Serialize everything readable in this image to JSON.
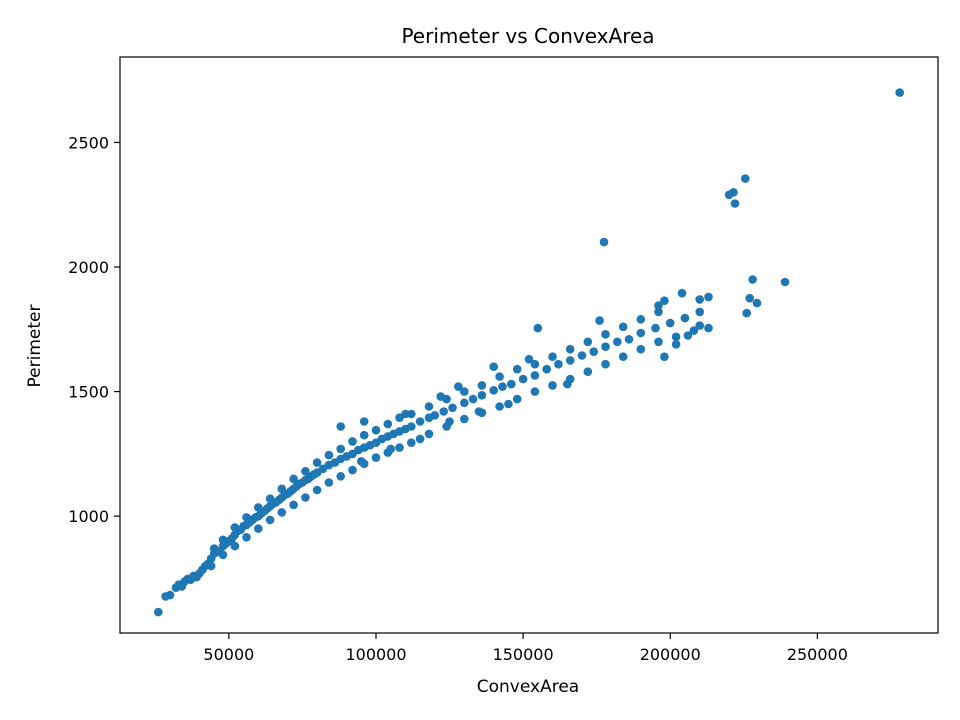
{
  "chart_data": {
    "type": "scatter",
    "title": "Perimeter vs ConvexArea",
    "xlabel": "ConvexArea",
    "ylabel": "Perimeter",
    "xlim": [
      13000,
      291000
    ],
    "ylim": [
      531,
      2843
    ],
    "xticks": [
      50000,
      100000,
      150000,
      200000,
      250000
    ],
    "yticks": [
      1000,
      1500,
      2000,
      2500
    ],
    "grid": false,
    "marker_color": "#1f77b4",
    "series": [
      {
        "points": [
          [
            26000,
            615
          ],
          [
            28500,
            678
          ],
          [
            30000,
            683
          ],
          [
            32000,
            713
          ],
          [
            33000,
            725
          ],
          [
            34000,
            718
          ],
          [
            35000,
            738
          ],
          [
            36000,
            748
          ],
          [
            37000,
            745
          ],
          [
            38000,
            760
          ],
          [
            39000,
            755
          ],
          [
            40000,
            770
          ],
          [
            41000,
            785
          ],
          [
            42000,
            800
          ],
          [
            43000,
            810
          ],
          [
            44000,
            830
          ],
          [
            45000,
            850
          ],
          [
            46000,
            860
          ],
          [
            47000,
            855
          ],
          [
            48000,
            880
          ],
          [
            49000,
            890
          ],
          [
            50000,
            900
          ],
          [
            51000,
            910
          ],
          [
            52000,
            925
          ],
          [
            53000,
            940
          ],
          [
            54000,
            945
          ],
          [
            55000,
            960
          ],
          [
            56000,
            965
          ],
          [
            57000,
            975
          ],
          [
            58000,
            985
          ],
          [
            59000,
            995
          ],
          [
            60000,
            1000
          ],
          [
            61000,
            1010
          ],
          [
            62000,
            1020
          ],
          [
            63000,
            1030
          ],
          [
            64000,
            1040
          ],
          [
            65000,
            1050
          ],
          [
            66000,
            1055
          ],
          [
            67000,
            1065
          ],
          [
            68000,
            1075
          ],
          [
            69000,
            1085
          ],
          [
            70000,
            1090
          ],
          [
            71000,
            1100
          ],
          [
            72000,
            1110
          ],
          [
            73000,
            1120
          ],
          [
            74000,
            1130
          ],
          [
            75000,
            1135
          ],
          [
            76000,
            1145
          ],
          [
            77000,
            1150
          ],
          [
            78000,
            1160
          ],
          [
            79000,
            1168
          ],
          [
            80000,
            1175
          ],
          [
            82000,
            1190
          ],
          [
            84000,
            1205
          ],
          [
            86000,
            1215
          ],
          [
            88000,
            1230
          ],
          [
            90000,
            1240
          ],
          [
            92000,
            1250
          ],
          [
            94000,
            1265
          ],
          [
            96000,
            1275
          ],
          [
            98000,
            1285
          ],
          [
            100000,
            1295
          ],
          [
            102000,
            1310
          ],
          [
            104000,
            1320
          ],
          [
            106000,
            1330
          ],
          [
            108000,
            1340
          ],
          [
            110000,
            1350
          ],
          [
            112000,
            1360
          ],
          [
            115000,
            1380
          ],
          [
            118000,
            1395
          ],
          [
            120000,
            1405
          ],
          [
            123000,
            1420
          ],
          [
            126000,
            1435
          ],
          [
            130000,
            1455
          ],
          [
            133000,
            1470
          ],
          [
            136000,
            1485
          ],
          [
            140000,
            1505
          ],
          [
            143000,
            1520
          ],
          [
            146000,
            1530
          ],
          [
            150000,
            1550
          ],
          [
            154000,
            1565
          ],
          [
            158000,
            1590
          ],
          [
            162000,
            1610
          ],
          [
            166000,
            1625
          ],
          [
            170000,
            1645
          ],
          [
            174000,
            1660
          ],
          [
            178000,
            1680
          ],
          [
            182000,
            1700
          ],
          [
            186000,
            1710
          ],
          [
            190000,
            1735
          ],
          [
            195000,
            1755
          ],
          [
            200000,
            1775
          ],
          [
            205000,
            1795
          ],
          [
            210000,
            1820
          ],
          [
            45000,
            870
          ],
          [
            48000,
            905
          ],
          [
            52000,
            955
          ],
          [
            56000,
            995
          ],
          [
            60000,
            1035
          ],
          [
            64000,
            1070
          ],
          [
            68000,
            1110
          ],
          [
            72000,
            1150
          ],
          [
            76000,
            1180
          ],
          [
            80000,
            1215
          ],
          [
            84000,
            1245
          ],
          [
            88000,
            1270
          ],
          [
            92000,
            1300
          ],
          [
            96000,
            1325
          ],
          [
            100000,
            1345
          ],
          [
            104000,
            1370
          ],
          [
            108000,
            1395
          ],
          [
            112000,
            1410
          ],
          [
            118000,
            1440
          ],
          [
            124000,
            1470
          ],
          [
            130000,
            1500
          ],
          [
            136000,
            1525
          ],
          [
            142000,
            1560
          ],
          [
            148000,
            1590
          ],
          [
            154000,
            1610
          ],
          [
            160000,
            1640
          ],
          [
            166000,
            1670
          ],
          [
            172000,
            1700
          ],
          [
            178000,
            1730
          ],
          [
            184000,
            1760
          ],
          [
            190000,
            1790
          ],
          [
            196000,
            1820
          ],
          [
            44000,
            800
          ],
          [
            48000,
            845
          ],
          [
            52000,
            880
          ],
          [
            56000,
            915
          ],
          [
            60000,
            950
          ],
          [
            64000,
            985
          ],
          [
            68000,
            1015
          ],
          [
            72000,
            1045
          ],
          [
            76000,
            1075
          ],
          [
            80000,
            1105
          ],
          [
            84000,
            1135
          ],
          [
            88000,
            1160
          ],
          [
            92000,
            1185
          ],
          [
            96000,
            1210
          ],
          [
            100000,
            1235
          ],
          [
            104000,
            1255
          ],
          [
            108000,
            1275
          ],
          [
            112000,
            1295
          ],
          [
            118000,
            1330
          ],
          [
            124000,
            1360
          ],
          [
            130000,
            1390
          ],
          [
            136000,
            1415
          ],
          [
            142000,
            1440
          ],
          [
            148000,
            1470
          ],
          [
            154000,
            1500
          ],
          [
            160000,
            1525
          ],
          [
            166000,
            1550
          ],
          [
            172000,
            1580
          ],
          [
            178000,
            1610
          ],
          [
            184000,
            1640
          ],
          [
            190000,
            1670
          ],
          [
            196000,
            1700
          ],
          [
            202000,
            1720
          ],
          [
            208000,
            1745
          ],
          [
            155000,
            1755
          ],
          [
            176000,
            1785
          ],
          [
            196000,
            1845
          ],
          [
            198000,
            1865
          ],
          [
            204000,
            1895
          ],
          [
            210000,
            1870
          ],
          [
            213000,
            1880
          ],
          [
            213000,
            1755
          ],
          [
            210000,
            1765
          ],
          [
            198000,
            1640
          ],
          [
            202000,
            1690
          ],
          [
            206000,
            1725
          ],
          [
            177500,
            2100
          ],
          [
            220000,
            2290
          ],
          [
            221500,
            2300
          ],
          [
            222000,
            2255
          ],
          [
            225500,
            2355
          ],
          [
            228000,
            1950
          ],
          [
            227000,
            1875
          ],
          [
            229500,
            1855
          ],
          [
            226000,
            1815
          ],
          [
            239000,
            1940
          ],
          [
            278000,
            2700
          ],
          [
            95000,
            1220
          ],
          [
            105000,
            1270
          ],
          [
            115000,
            1310
          ],
          [
            125000,
            1380
          ],
          [
            135000,
            1420
          ],
          [
            145000,
            1450
          ],
          [
            165000,
            1530
          ],
          [
            88000,
            1360
          ],
          [
            96000,
            1380
          ],
          [
            110000,
            1410
          ],
          [
            122000,
            1480
          ],
          [
            128000,
            1520
          ],
          [
            140000,
            1600
          ],
          [
            152000,
            1630
          ]
        ]
      }
    ]
  }
}
